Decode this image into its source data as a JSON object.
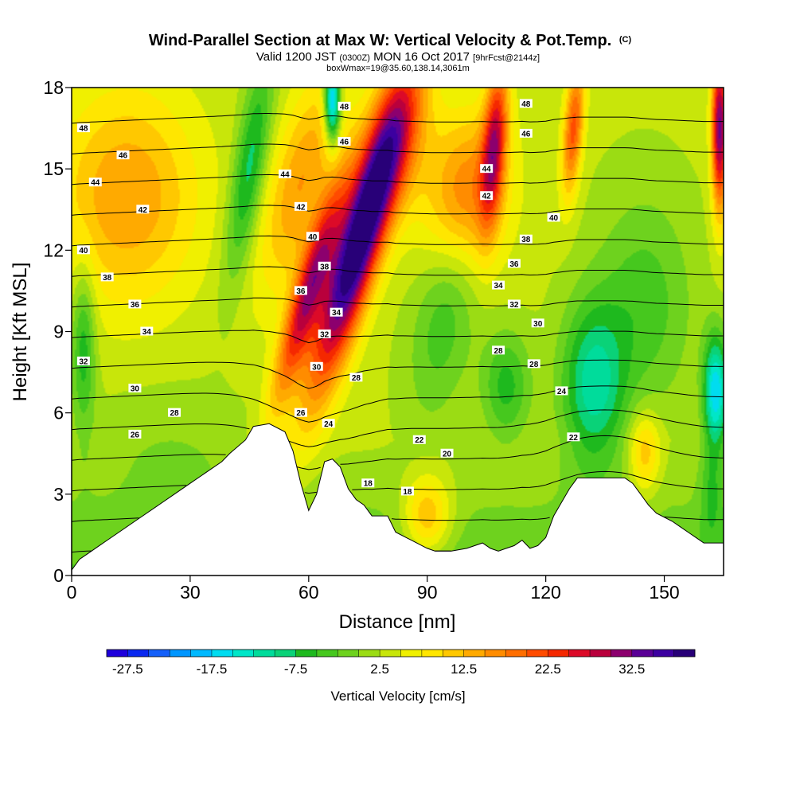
{
  "chart_data": {
    "type": "heatmap",
    "title": "Wind-Parallel Section at Max W: Vertical Velocity & Pot.Temp.",
    "title_mark": "(C)",
    "subtitle_parts": [
      "Valid 1200 JST",
      "(0300Z)",
      "MON 16 Oct 2017",
      "[9hrFcst@2144z]"
    ],
    "subtitle2": "boxWmax=19@35.60,138.14,3061m",
    "xlabel": "Distance [nm]",
    "ylabel": "Height [Kft MSL]",
    "xlim": [
      0,
      165
    ],
    "ylim": [
      0,
      18
    ],
    "x_ticks": [
      0,
      30,
      60,
      90,
      120,
      150
    ],
    "y_ticks": [
      0,
      3,
      6,
      9,
      12,
      15,
      18
    ],
    "grid": false,
    "colorbar": {
      "label": "Vertical Velocity [cm/s]",
      "tick_labels": [
        "-27.5",
        "-17.5",
        "-7.5",
        "2.5",
        "12.5",
        "22.5",
        "32.5"
      ],
      "tick_values": [
        -27.5,
        -17.5,
        -7.5,
        2.5,
        12.5,
        22.5,
        32.5
      ],
      "min": -30,
      "max": 40,
      "step": 2.5,
      "colors": [
        "#1e00dc",
        "#0a28f0",
        "#1460fa",
        "#0096ff",
        "#00b9ff",
        "#00dcf0",
        "#00e6c8",
        "#00dc9b",
        "#0ad278",
        "#1eb91e",
        "#46c81e",
        "#6ed21e",
        "#9bdc14",
        "#c8e60a",
        "#f0f000",
        "#ffe600",
        "#ffc800",
        "#ffaa00",
        "#ff8c00",
        "#ff6e00",
        "#ff4b00",
        "#f52800",
        "#dc0a28",
        "#b9003c",
        "#8c006e",
        "#5a0096",
        "#3c00a0",
        "#280078"
      ]
    },
    "terrain": {
      "x": [
        0,
        2,
        4,
        8,
        12,
        16,
        18,
        22,
        26,
        30,
        34,
        38,
        40,
        44,
        46,
        50,
        54,
        56,
        58,
        60,
        62,
        64,
        66,
        68,
        70,
        72,
        74,
        76,
        80,
        82,
        86,
        90,
        92,
        96,
        100,
        104,
        106,
        108,
        110,
        112,
        114,
        116,
        118,
        120,
        122,
        124,
        126,
        128,
        132,
        136,
        140,
        142,
        144,
        146,
        148,
        152,
        154,
        156,
        158,
        160,
        162,
        164,
        165
      ],
      "height_kft": [
        0.2,
        0.6,
        0.8,
        1.2,
        1.6,
        2.0,
        2.2,
        2.6,
        3.0,
        3.4,
        3.8,
        4.2,
        4.5,
        5.0,
        5.5,
        5.6,
        5.3,
        4.6,
        3.4,
        2.4,
        3.0,
        4.2,
        4.3,
        4.0,
        3.2,
        2.8,
        2.6,
        2.2,
        2.2,
        1.6,
        1.3,
        1.0,
        0.9,
        0.9,
        1.0,
        1.2,
        1.0,
        0.9,
        1.0,
        1.1,
        1.3,
        1.0,
        1.1,
        1.4,
        2.2,
        2.7,
        3.2,
        3.6,
        3.6,
        3.6,
        3.6,
        3.4,
        3.0,
        2.6,
        2.3,
        2.0,
        1.8,
        1.6,
        1.4,
        1.2,
        1.2,
        1.2,
        1.2
      ]
    },
    "velocity_features": [
      {
        "x": 60,
        "y": 10.5,
        "sx": 4,
        "sy": 4,
        "tilt": 0.38,
        "w": 24
      },
      {
        "x": 73,
        "y": 12.5,
        "sx": 6,
        "sy": 5.5,
        "tilt": 0.38,
        "w": 40
      },
      {
        "x": 58,
        "y": 14.5,
        "sx": 8,
        "sy": 4,
        "tilt": 0.3,
        "w": 12
      },
      {
        "x": 83,
        "y": 16,
        "sx": 8,
        "sy": 3,
        "tilt": 0.2,
        "w": 10
      },
      {
        "x": 107,
        "y": 16,
        "sx": 3,
        "sy": 3,
        "tilt": 0.1,
        "w": 22
      },
      {
        "x": 127,
        "y": 16.5,
        "sx": 2.5,
        "sy": 2.5,
        "tilt": 0.1,
        "w": 18
      },
      {
        "x": 164,
        "y": 16.5,
        "sx": 2,
        "sy": 3,
        "tilt": 0,
        "w": 30
      },
      {
        "x": 14,
        "y": 14,
        "sx": 18,
        "sy": 4,
        "tilt": 0,
        "w": 12
      },
      {
        "x": 100,
        "y": 14,
        "sx": 10,
        "sy": 3,
        "tilt": 0.1,
        "w": 16
      },
      {
        "x": 45,
        "y": 15,
        "sx": 4,
        "sy": 4,
        "tilt": 0.2,
        "w": -12
      },
      {
        "x": 66,
        "y": 17.5,
        "sx": 2,
        "sy": 1.5,
        "tilt": 0,
        "w": -25
      },
      {
        "x": 95,
        "y": 10,
        "sx": 8,
        "sy": 4,
        "tilt": 0.2,
        "w": -8
      },
      {
        "x": 132,
        "y": 7,
        "sx": 8,
        "sy": 3,
        "tilt": 0,
        "w": -14
      },
      {
        "x": 163,
        "y": 6.8,
        "sx": 3,
        "sy": 2,
        "tilt": 0,
        "w": -20
      },
      {
        "x": 110,
        "y": 7,
        "sx": 6,
        "sy": 2,
        "tilt": 0,
        "w": -9
      },
      {
        "x": 3,
        "y": 8.5,
        "sx": 3,
        "sy": 3,
        "tilt": 0,
        "w": -10
      },
      {
        "x": 145,
        "y": 10,
        "sx": 12,
        "sy": 4,
        "tilt": 0,
        "w": -7
      },
      {
        "x": 90,
        "y": 2.2,
        "sx": 6,
        "sy": 1.5,
        "tilt": 0,
        "w": 12
      },
      {
        "x": 25,
        "y": 5,
        "sx": 20,
        "sy": 2,
        "tilt": 0,
        "w": -3
      },
      {
        "x": 145,
        "y": 4.5,
        "sx": 4,
        "sy": 1.5,
        "tilt": 0,
        "w": 10
      },
      {
        "x": 162,
        "y": 3,
        "sx": 3,
        "sy": 2,
        "tilt": 0,
        "w": -6
      }
    ],
    "theta_levels": [
      18,
      20,
      22,
      24,
      26,
      28,
      30,
      32,
      34,
      36,
      38,
      40,
      42,
      44,
      46,
      48
    ],
    "theta_labels": [
      {
        "text": "48",
        "x": 3,
        "y": 16.5
      },
      {
        "text": "48",
        "x": 69,
        "y": 17.3
      },
      {
        "text": "48",
        "x": 115,
        "y": 17.4
      },
      {
        "text": "46",
        "x": 13,
        "y": 15.5
      },
      {
        "text": "46",
        "x": 69,
        "y": 16.0
      },
      {
        "text": "46",
        "x": 115,
        "y": 16.3
      },
      {
        "text": "44",
        "x": 6,
        "y": 14.5
      },
      {
        "text": "44",
        "x": 54,
        "y": 14.8
      },
      {
        "text": "44",
        "x": 105,
        "y": 15.0
      },
      {
        "text": "42",
        "x": 18,
        "y": 13.5
      },
      {
        "text": "42",
        "x": 58,
        "y": 13.6
      },
      {
        "text": "42",
        "x": 105,
        "y": 14.0
      },
      {
        "text": "40",
        "x": 3,
        "y": 12.0
      },
      {
        "text": "40",
        "x": 61,
        "y": 12.5
      },
      {
        "text": "40",
        "x": 122,
        "y": 13.2
      },
      {
        "text": "38",
        "x": 9,
        "y": 11.0
      },
      {
        "text": "38",
        "x": 64,
        "y": 11.4
      },
      {
        "text": "38",
        "x": 115,
        "y": 12.4
      },
      {
        "text": "36",
        "x": 16,
        "y": 10.0
      },
      {
        "text": "36",
        "x": 58,
        "y": 10.5
      },
      {
        "text": "36",
        "x": 112,
        "y": 11.5
      },
      {
        "text": "34",
        "x": 19,
        "y": 9.0
      },
      {
        "text": "34",
        "x": 67,
        "y": 9.7
      },
      {
        "text": "34",
        "x": 108,
        "y": 10.7
      },
      {
        "text": "32",
        "x": 3,
        "y": 7.9
      },
      {
        "text": "32",
        "x": 64,
        "y": 8.9
      },
      {
        "text": "32",
        "x": 112,
        "y": 10.0
      },
      {
        "text": "30",
        "x": 16,
        "y": 6.9
      },
      {
        "text": "30",
        "x": 62,
        "y": 7.7
      },
      {
        "text": "30",
        "x": 118,
        "y": 9.3
      },
      {
        "text": "28",
        "x": 26,
        "y": 6.0
      },
      {
        "text": "28",
        "x": 72,
        "y": 7.3
      },
      {
        "text": "28",
        "x": 108,
        "y": 8.3
      },
      {
        "text": "26",
        "x": 16,
        "y": 5.2
      },
      {
        "text": "26",
        "x": 58,
        "y": 6.0
      },
      {
        "text": "28",
        "x": 117,
        "y": 7.8
      },
      {
        "text": "24",
        "x": 65,
        "y": 5.6
      },
      {
        "text": "24",
        "x": 124,
        "y": 6.8
      },
      {
        "text": "22",
        "x": 88,
        "y": 5.0
      },
      {
        "text": "22",
        "x": 127,
        "y": 5.1
      },
      {
        "text": "20",
        "x": 95,
        "y": 4.5
      },
      {
        "text": "18",
        "x": 75,
        "y": 3.4
      },
      {
        "text": "18",
        "x": 85,
        "y": 3.1
      }
    ]
  }
}
